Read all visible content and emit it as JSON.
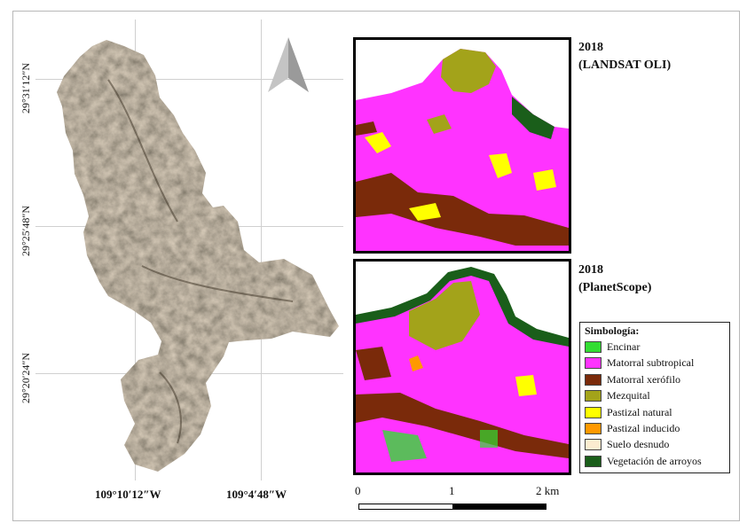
{
  "coordinates": {
    "lat": [
      "29°31′12″N",
      "29°25′48″N",
      "29°20′24″N"
    ],
    "lon": [
      "109°10′12″W",
      "109°4′48″W"
    ]
  },
  "panels": [
    {
      "year": "2018",
      "source": "(LANDSAT OLI)"
    },
    {
      "year": "2018",
      "source": "(PlanetScope)"
    }
  ],
  "legend": {
    "title": "Simbología:",
    "items": [
      {
        "label": "Encinar",
        "color": "#33dd33"
      },
      {
        "label": "Matorral subtropical",
        "color": "#ff33ff"
      },
      {
        "label": "Matorral xerófilo",
        "color": "#7a2a0a"
      },
      {
        "label": "Mezquital",
        "color": "#a3a31a"
      },
      {
        "label": "Pastizal natural",
        "color": "#ffff00"
      },
      {
        "label": "Pastizal inducido",
        "color": "#ff9900"
      },
      {
        "label": "Suelo desnudo",
        "color": "#fbecd0"
      },
      {
        "label": "Vegetación de arroyos",
        "color": "#1a5e1a"
      }
    ]
  },
  "scale": {
    "ticks": [
      "0",
      "1",
      "2 km"
    ]
  },
  "north_arrow": "north-arrow-icon"
}
